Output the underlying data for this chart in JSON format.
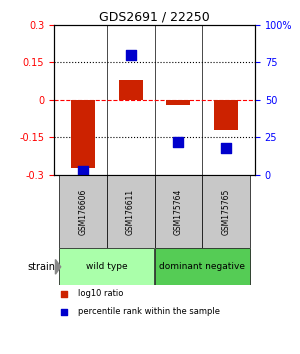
{
  "title": "GDS2691 / 22250",
  "samples": [
    "GSM176606",
    "GSM176611",
    "GSM175764",
    "GSM175765"
  ],
  "log10_ratio": [
    -0.27,
    0.08,
    -0.02,
    -0.12
  ],
  "percentile_rank": [
    3.0,
    80.0,
    22.0,
    18.0
  ],
  "bar_color": "#cc2200",
  "dot_color": "#0000cc",
  "ylim_left": [
    -0.3,
    0.3
  ],
  "ylim_right": [
    0,
    100
  ],
  "yticks_left": [
    -0.3,
    -0.15,
    0,
    0.15,
    0.3
  ],
  "yticks_right": [
    0,
    25,
    50,
    75,
    100
  ],
  "ytick_labels_left": [
    "-0.3",
    "-0.15",
    "0",
    "0.15",
    "0.3"
  ],
  "ytick_labels_right": [
    "0",
    "25",
    "50",
    "75",
    "100%"
  ],
  "hlines": [
    -0.15,
    0.0,
    0.15
  ],
  "hline_styles": [
    "dotted",
    "dashed",
    "dotted"
  ],
  "hline_colors": [
    "black",
    "red",
    "black"
  ],
  "strain_groups": [
    {
      "label": "wild type",
      "indices": [
        0,
        1
      ],
      "color": "#aaffaa"
    },
    {
      "label": "dominant negative",
      "indices": [
        2,
        3
      ],
      "color": "#55cc55"
    }
  ],
  "strain_label": "strain",
  "legend_items": [
    {
      "label": "log10 ratio",
      "color": "#cc2200",
      "marker": "s"
    },
    {
      "label": "percentile rank within the sample",
      "color": "#0000cc",
      "marker": "s"
    }
  ],
  "bar_width": 0.5,
  "dot_size": 60,
  "background_color": "#ffffff",
  "plot_bg": "#ffffff",
  "sample_box_color": "#c8c8c8"
}
